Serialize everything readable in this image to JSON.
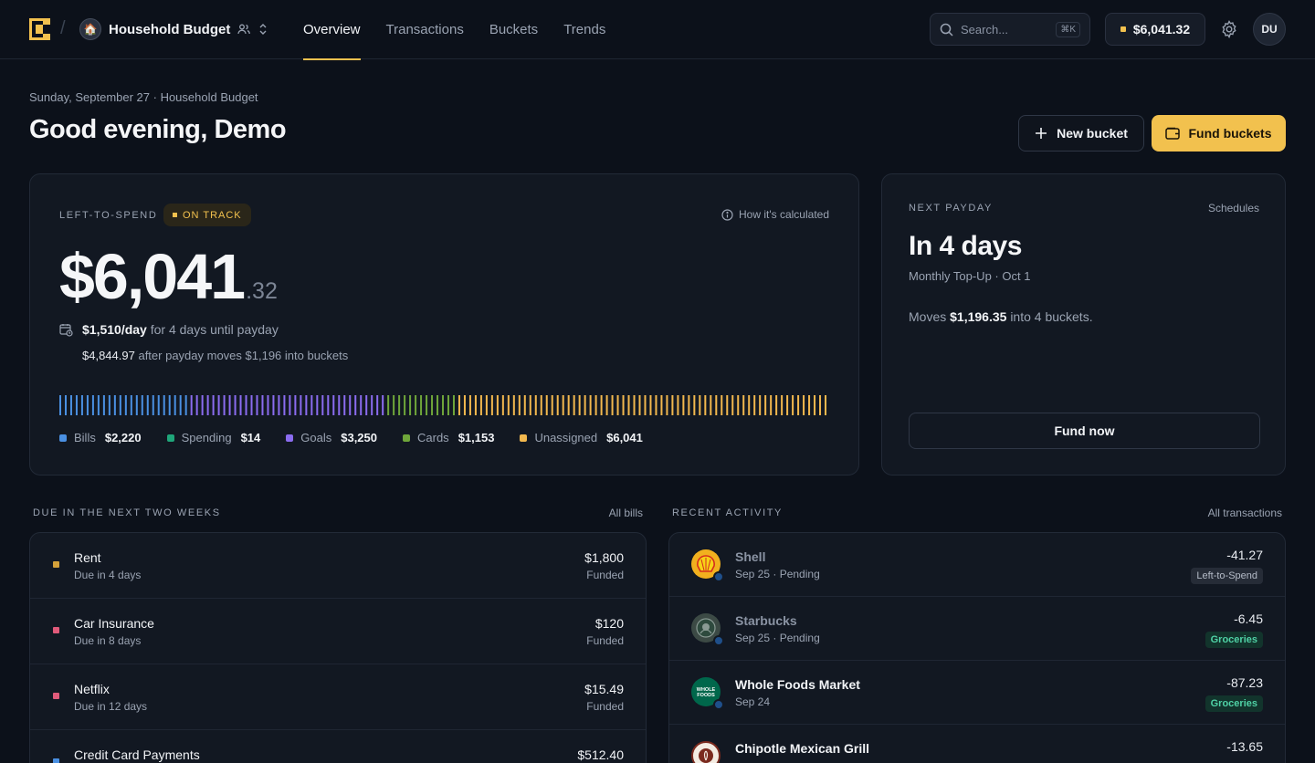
{
  "header": {
    "workspace_name": "Household Budget",
    "nav": [
      "Overview",
      "Transactions",
      "Buckets",
      "Trends"
    ],
    "active_nav": "Overview",
    "search_placeholder": "Search...",
    "search_shortcut": "⌘K",
    "balance": "$6,041.32",
    "user_initials": "DU"
  },
  "greeting": {
    "subline": "Sunday, September 27 · Household Budget",
    "title": "Good evening, Demo",
    "new_bucket_label": "New bucket",
    "fund_buckets_label": "Fund buckets"
  },
  "left_to_spend": {
    "label": "LEFT-TO-SPEND",
    "status": "ON TRACK",
    "how_label": "How it's calculated",
    "amount_main": "$6,041",
    "amount_cents": ".32",
    "per_day": "$1,510/day",
    "per_day_rest": "for 4 days until payday",
    "after_amount": "$4,844.97",
    "after_rest": "after payday moves $1,196 into buckets",
    "segments": [
      {
        "name": "Bills",
        "value": "$2,220",
        "color": "#4a90e2",
        "ticks": 24
      },
      {
        "name": "Spending",
        "value": "$14",
        "color": "#1fa67a",
        "ticks": 0
      },
      {
        "name": "Goals",
        "value": "$3,250",
        "color": "#8b6cf0",
        "ticks": 36
      },
      {
        "name": "Cards",
        "value": "$1,153",
        "color": "#6fa63a",
        "ticks": 13
      },
      {
        "name": "Unassigned",
        "value": "$6,041",
        "color": "#f2b84e",
        "ticks": 68
      }
    ]
  },
  "next_payday": {
    "label": "NEXT PAYDAY",
    "schedules_label": "Schedules",
    "headline": "In 4 days",
    "sub": "Monthly Top-Up · Oct 1",
    "moves_prefix": "Moves",
    "moves_amount": "$1,196.35",
    "moves_suffix": "into 4 buckets.",
    "fund_now_label": "Fund now"
  },
  "bills": {
    "label": "DUE IN THE NEXT TWO WEEKS",
    "link": "All bills",
    "items": [
      {
        "name": "Rent",
        "due": "Due in 4 days",
        "amount": "$1,800",
        "status": "Funded",
        "color": "#d4a13a"
      },
      {
        "name": "Car Insurance",
        "due": "Due in 8 days",
        "amount": "$120",
        "status": "Funded",
        "color": "#e05a7a"
      },
      {
        "name": "Netflix",
        "due": "Due in 12 days",
        "amount": "$15.49",
        "status": "Funded",
        "color": "#e05a7a"
      },
      {
        "name": "Credit Card Payments",
        "due": "",
        "amount": "$512.40",
        "status": "",
        "color": "#4a90e2"
      }
    ]
  },
  "activity": {
    "label": "RECENT ACTIVITY",
    "link": "All transactions",
    "items": [
      {
        "name": "Shell",
        "date": "Sep 25 · Pending",
        "amount": "-41.27",
        "tag": "Left-to-Spend",
        "pending": true,
        "logo_bg": "#f2b01e",
        "logo_text": "SHELL"
      },
      {
        "name": "Starbucks",
        "date": "Sep 25 · Pending",
        "amount": "-6.45",
        "tag": "Groceries",
        "pending": true,
        "logo_bg": "#3c4a45",
        "logo_text": "SB"
      },
      {
        "name": "Whole Foods Market",
        "date": "Sep 24",
        "amount": "-87.23",
        "tag": "Groceries",
        "pending": false,
        "logo_bg": "#00674b",
        "logo_text": "WHOLE FOODS"
      },
      {
        "name": "Chipotle Mexican Grill",
        "date": "",
        "amount": "-13.65",
        "tag": "",
        "pending": false,
        "logo_bg": "#7a2a1e",
        "logo_text": "C"
      }
    ]
  }
}
